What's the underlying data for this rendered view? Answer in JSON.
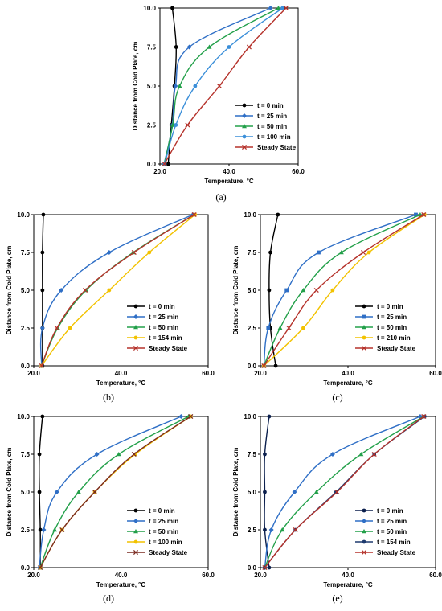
{
  "chart_data": [
    {
      "panel": "(a)",
      "type": "line",
      "xlabel": "Temperature, °C",
      "ylabel": "Distance from Cold Plate, cm",
      "xlim": [
        20.0,
        60.0
      ],
      "ylim": [
        0.0,
        10.0
      ],
      "xticks": [
        "20.0",
        "40.0",
        "60.0"
      ],
      "yticks": [
        "0.0",
        "2.5",
        "5.0",
        "7.5",
        "10.0"
      ],
      "legend_position": "bottom-right",
      "series": [
        {
          "name": "t = 0 min",
          "color": "#000000",
          "marker": "circle",
          "x": [
            22.4,
            23.3,
            24.2,
            24.7,
            23.6
          ],
          "y": [
            0,
            2.5,
            5,
            7.5,
            10
          ]
        },
        {
          "name": "t = 25 min",
          "color": "#2f6fc6",
          "marker": "diamond",
          "x": [
            21.2,
            23.6,
            24.5,
            28.5,
            52.0
          ],
          "y": [
            0,
            2.5,
            5,
            7.5,
            10
          ]
        },
        {
          "name": "t = 50 min",
          "color": "#23a04a",
          "marker": "triangle",
          "x": [
            21.3,
            23.7,
            25.7,
            34.3,
            54.3
          ],
          "y": [
            0,
            2.5,
            5,
            7.5,
            10
          ]
        },
        {
          "name": "t = 100 min",
          "color": "#3b8fd9",
          "marker": "circle",
          "x": [
            21.4,
            24.6,
            30.2,
            40.0,
            55.5
          ],
          "y": [
            0,
            2.5,
            5,
            7.5,
            10
          ]
        },
        {
          "name": "Steady State",
          "color": "#b5322b",
          "marker": "x",
          "x": [
            21.3,
            28.0,
            37.2,
            45.8,
            56.5
          ],
          "y": [
            0,
            2.5,
            5,
            7.5,
            10
          ]
        }
      ]
    },
    {
      "panel": "(b)",
      "type": "line",
      "xlabel": "Temperature, °C",
      "ylabel": "Distance from Cold Plate, cm",
      "xlim": [
        20.0,
        60.0
      ],
      "ylim": [
        0.0,
        10.0
      ],
      "xticks": [
        "20.0",
        "40.0",
        "60.0"
      ],
      "yticks": [
        "0.0",
        "2.5",
        "5.0",
        "7.5",
        "10.0"
      ],
      "legend_position": "bottom-right",
      "series": [
        {
          "name": "t = 0 min",
          "color": "#000000",
          "marker": "circle",
          "x": [
            22.0,
            22.0,
            22.0,
            22.0,
            22.2
          ],
          "y": [
            0,
            2.5,
            5,
            7.5,
            10
          ]
        },
        {
          "name": "t = 25 min",
          "color": "#2f6fc6",
          "marker": "diamond",
          "x": [
            21.8,
            22.0,
            26.3,
            37.3,
            56.5
          ],
          "y": [
            0,
            2.5,
            5,
            7.5,
            10
          ]
        },
        {
          "name": "t = 50 min",
          "color": "#23a04a",
          "marker": "triangle",
          "x": [
            21.8,
            25.5,
            32.0,
            42.8,
            56.8
          ],
          "y": [
            0,
            2.5,
            5,
            7.5,
            10
          ]
        },
        {
          "name": "t = 154 min",
          "color": "#f2c200",
          "marker": "circle",
          "x": [
            21.8,
            28.3,
            37.3,
            46.5,
            57.0
          ],
          "y": [
            0,
            2.5,
            5,
            7.5,
            10
          ]
        },
        {
          "name": "Steady State",
          "color": "#b5322b",
          "marker": "x",
          "x": [
            21.8,
            25.3,
            31.8,
            43.0,
            56.8
          ],
          "y": [
            0,
            2.5,
            5,
            7.5,
            10
          ]
        }
      ]
    },
    {
      "panel": "(c)",
      "type": "line",
      "xlabel": "Temperature, °C",
      "ylabel": "Distance from Cold Plate, cm",
      "xlim": [
        20.0,
        60.0
      ],
      "ylim": [
        0.0,
        10.0
      ],
      "xticks": [
        "20.0",
        "40.0",
        "60.0"
      ],
      "yticks": [
        "0.0",
        "2.5",
        "5.0",
        "7.5",
        "10.0"
      ],
      "legend_position": "bottom-right",
      "series": [
        {
          "name": "t = 0 min",
          "color": "#000000",
          "marker": "circle",
          "x": [
            23.5,
            22.3,
            22.0,
            22.3,
            24.0
          ],
          "y": [
            0,
            2.5,
            5,
            7.5,
            10
          ]
        },
        {
          "name": "t = 25 min",
          "color": "#2f6fc6",
          "marker": "square",
          "x": [
            20.8,
            21.8,
            26.0,
            33.3,
            55.5
          ],
          "y": [
            0,
            2.5,
            5,
            7.5,
            10
          ]
        },
        {
          "name": "t = 50 min",
          "color": "#23a04a",
          "marker": "triangle",
          "x": [
            20.8,
            24.5,
            29.8,
            38.5,
            56.5
          ],
          "y": [
            0,
            2.5,
            5,
            7.5,
            10
          ]
        },
        {
          "name": "t = 210 min",
          "color": "#f2c200",
          "marker": "circle",
          "x": [
            20.8,
            29.8,
            36.5,
            44.8,
            57.5
          ],
          "y": [
            0,
            2.5,
            5,
            7.5,
            10
          ]
        },
        {
          "name": "Steady State",
          "color": "#b5322b",
          "marker": "x",
          "x": [
            20.8,
            26.5,
            32.8,
            43.5,
            57.3
          ],
          "y": [
            0,
            2.5,
            5,
            7.5,
            10
          ]
        }
      ]
    },
    {
      "panel": "(d)",
      "type": "line",
      "xlabel": "Temperature, °C",
      "ylabel": "Distance from Cold Plate, cm",
      "xlim": [
        20.0,
        60.0
      ],
      "ylim": [
        0.0,
        10.0
      ],
      "xticks": [
        "20.0",
        "40.0",
        "60.0"
      ],
      "yticks": [
        "0.0",
        "2.5",
        "5.0",
        "7.5",
        "10.0"
      ],
      "legend_position": "bottom-right",
      "series": [
        {
          "name": "t = 0 min",
          "color": "#000000",
          "marker": "circle",
          "x": [
            21.5,
            21.5,
            21.3,
            21.3,
            22.0
          ],
          "y": [
            0,
            2.5,
            5,
            7.5,
            10
          ]
        },
        {
          "name": "t = 25 min",
          "color": "#2f6fc6",
          "marker": "diamond",
          "x": [
            21.3,
            22.3,
            25.3,
            34.5,
            53.8
          ],
          "y": [
            0,
            2.5,
            5,
            7.5,
            10
          ]
        },
        {
          "name": "t = 50 min",
          "color": "#23a04a",
          "marker": "triangle",
          "x": [
            21.5,
            24.8,
            30.3,
            39.5,
            55.5
          ],
          "y": [
            0,
            2.5,
            5,
            7.5,
            10
          ]
        },
        {
          "name": "t = 100 min",
          "color": "#f2c200",
          "marker": "circle",
          "x": [
            21.5,
            26.5,
            34.0,
            43.3,
            56.0
          ],
          "y": [
            0,
            2.5,
            5,
            7.5,
            10
          ]
        },
        {
          "name": "Steady State",
          "color": "#7a2a20",
          "marker": "x",
          "x": [
            21.5,
            26.5,
            34.0,
            43.0,
            56.0
          ],
          "y": [
            0,
            2.5,
            5,
            7.5,
            10
          ]
        }
      ]
    },
    {
      "panel": "(e)",
      "type": "line",
      "xlabel": "Temperature, °C",
      "ylabel": "Distance from Cold Plate, cm",
      "xlim": [
        20.0,
        60.0
      ],
      "ylim": [
        0.0,
        10.0
      ],
      "xticks": [
        "20.0",
        "40.0",
        "60.0"
      ],
      "yticks": [
        "0.0",
        "2.5",
        "5.0",
        "7.5",
        "10.0"
      ],
      "legend_position": "bottom-right",
      "series": [
        {
          "name": "t = 0 min",
          "color": "#0b1f4d",
          "marker": "circle",
          "x": [
            22.0,
            21.0,
            21.0,
            21.0,
            22.0
          ],
          "y": [
            0,
            2.5,
            5,
            7.5,
            10
          ]
        },
        {
          "name": "t = 25 min",
          "color": "#2f6fc6",
          "marker": "diamond",
          "x": [
            21.0,
            22.5,
            27.8,
            36.5,
            56.5
          ],
          "y": [
            0,
            2.5,
            5,
            7.5,
            10
          ]
        },
        {
          "name": "t = 50 min",
          "color": "#23a04a",
          "marker": "triangle",
          "x": [
            21.0,
            25.0,
            32.8,
            43.0,
            57.3
          ],
          "y": [
            0,
            2.5,
            5,
            7.5,
            10
          ]
        },
        {
          "name": "t = 154 min",
          "color": "#1e3a6e",
          "marker": "circle",
          "x": [
            21.0,
            28.0,
            37.3,
            46.0,
            57.5
          ],
          "y": [
            0,
            2.5,
            5,
            7.5,
            10
          ]
        },
        {
          "name": "Steady State",
          "color": "#b5322b",
          "marker": "x",
          "x": [
            21.0,
            28.0,
            37.5,
            46.0,
            57.3
          ],
          "y": [
            0,
            2.5,
            5,
            7.5,
            10
          ]
        }
      ]
    }
  ]
}
